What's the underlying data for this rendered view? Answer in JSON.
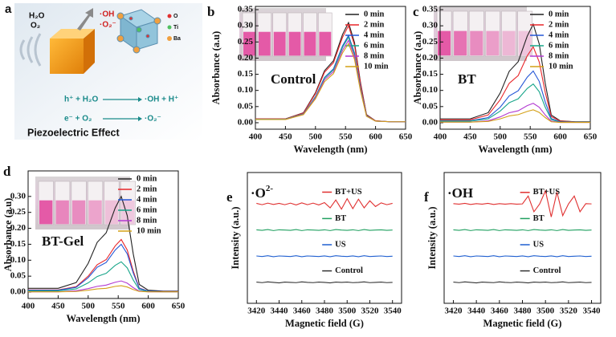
{
  "diagram": {
    "panel_label": "a",
    "h2o": "H₂O",
    "o2": "O₂",
    "oh": "·OH",
    "o2_radical": "·O₂⁻",
    "atoms": [
      "O",
      "Ti",
      "Ba"
    ],
    "reaction_1": {
      "left": "h⁺ + H₂O",
      "right": "·OH + H⁺"
    },
    "reaction_2": {
      "left": "e⁻ + O₂",
      "right": "·O₂⁻"
    },
    "caption": "Piezoelectric Effect"
  },
  "chart_data": [
    {
      "type": "line",
      "panel_label": "b",
      "title": "Control",
      "x_label": "Wavelength (nm)",
      "y_label": "Absorbance (a.u)",
      "xlim": [
        400,
        650
      ],
      "xticks": [
        400,
        450,
        500,
        550,
        600,
        650
      ],
      "ylim": [
        -0.02,
        0.36
      ],
      "yticks": [
        {
          "value": 0,
          "label": "0.00"
        },
        {
          "value": 0.05,
          "label": "0.05"
        },
        {
          "value": 0.1,
          "label": "0.10"
        },
        {
          "value": 0.15,
          "label": "0.15"
        },
        {
          "value": 0.2,
          "label": "0.20"
        },
        {
          "value": 0.25,
          "label": "0.25"
        },
        {
          "value": 0.3,
          "label": "0.30"
        },
        {
          "value": 0.35,
          "label": "0.35"
        }
      ],
      "legend": "upper right",
      "x": [
        400,
        450,
        480,
        500,
        515,
        530,
        545,
        555,
        565,
        575,
        585,
        600,
        625,
        650
      ],
      "series": [
        {
          "name": "0 min",
          "color": "#222222",
          "values": [
            0.012,
            0.012,
            0.031,
            0.093,
            0.161,
            0.192,
            0.273,
            0.31,
            0.248,
            0.124,
            0.025,
            0.006,
            0.003,
            0.003
          ]
        },
        {
          "name": "2 min",
          "color": "#e8262a",
          "values": [
            0.012,
            0.012,
            0.03,
            0.09,
            0.156,
            0.186,
            0.264,
            0.3,
            0.24,
            0.12,
            0.024,
            0.006,
            0.003,
            0.003
          ]
        },
        {
          "name": "4 min",
          "color": "#2356d6",
          "values": [
            0.011,
            0.011,
            0.027,
            0.081,
            0.14,
            0.167,
            0.238,
            0.27,
            0.216,
            0.108,
            0.022,
            0.005,
            0.003,
            0.003
          ]
        },
        {
          "name": "6 min",
          "color": "#17a589",
          "values": [
            0.011,
            0.011,
            0.027,
            0.08,
            0.138,
            0.164,
            0.233,
            0.265,
            0.212,
            0.106,
            0.021,
            0.005,
            0.003,
            0.003
          ]
        },
        {
          "name": "8 min",
          "color": "#b23ad1",
          "values": [
            0.01,
            0.01,
            0.026,
            0.077,
            0.133,
            0.158,
            0.224,
            0.255,
            0.204,
            0.102,
            0.02,
            0.005,
            0.003,
            0.003
          ]
        },
        {
          "name": "10 min",
          "color": "#d4a017",
          "values": [
            0.01,
            0.01,
            0.025,
            0.074,
            0.127,
            0.152,
            0.216,
            0.245,
            0.196,
            0.098,
            0.02,
            0.005,
            0.003,
            0.003
          ]
        }
      ]
    },
    {
      "type": "line",
      "panel_label": "c",
      "title": "BT",
      "x_label": "Wavelength (nm)",
      "y_label": "Absorbance (a.u)",
      "xlim": [
        400,
        650
      ],
      "xticks": [
        400,
        450,
        500,
        550,
        600,
        650
      ],
      "ylim": [
        -0.02,
        0.36
      ],
      "yticks": [
        {
          "value": 0,
          "label": "0.00"
        },
        {
          "value": 0.05,
          "label": "0.05"
        },
        {
          "value": 0.1,
          "label": "0.10"
        },
        {
          "value": 0.15,
          "label": "0.15"
        },
        {
          "value": 0.2,
          "label": "0.20"
        },
        {
          "value": 0.25,
          "label": "0.25"
        },
        {
          "value": 0.3,
          "label": "0.30"
        },
        {
          "value": 0.35,
          "label": "0.35"
        }
      ],
      "legend": "upper right",
      "x": [
        400,
        450,
        480,
        500,
        515,
        530,
        545,
        555,
        565,
        575,
        585,
        600,
        625,
        650
      ],
      "series": [
        {
          "name": "0 min",
          "color": "#222222",
          "values": [
            0.012,
            0.012,
            0.031,
            0.092,
            0.159,
            0.189,
            0.268,
            0.305,
            0.244,
            0.122,
            0.024,
            0.006,
            0.003,
            0.003
          ]
        },
        {
          "name": "2 min",
          "color": "#e8262a",
          "values": [
            0.009,
            0.009,
            0.024,
            0.071,
            0.122,
            0.146,
            0.207,
            0.235,
            0.188,
            0.094,
            0.019,
            0.005,
            0.003,
            0.003
          ]
        },
        {
          "name": "4 min",
          "color": "#2356d6",
          "values": [
            0.006,
            0.006,
            0.016,
            0.048,
            0.083,
            0.099,
            0.141,
            0.16,
            0.128,
            0.064,
            0.013,
            0.003,
            0.002,
            0.002
          ]
        },
        {
          "name": "6 min",
          "color": "#17a589",
          "values": [
            0.005,
            0.005,
            0.012,
            0.036,
            0.062,
            0.074,
            0.106,
            0.12,
            0.096,
            0.048,
            0.01,
            0.002,
            0.002,
            0.002
          ]
        },
        {
          "name": "8 min",
          "color": "#b23ad1",
          "values": [
            0.002,
            0.002,
            0.006,
            0.018,
            0.031,
            0.037,
            0.053,
            0.06,
            0.048,
            0.024,
            0.005,
            0.001,
            0.001,
            0.001
          ]
        },
        {
          "name": "10 min",
          "color": "#d4a017",
          "values": [
            0.002,
            0.002,
            0.004,
            0.012,
            0.021,
            0.025,
            0.035,
            0.04,
            0.032,
            0.016,
            0.003,
            0.001,
            0.001,
            0.001
          ]
        }
      ]
    },
    {
      "type": "line",
      "panel_label": "d",
      "title": "BT-Gel",
      "x_label": "Wavelength (nm)",
      "y_label": "Absorbance (a.u)",
      "xlim": [
        400,
        650
      ],
      "xticks": [
        400,
        450,
        500,
        550,
        600,
        650
      ],
      "ylim": [
        -0.02,
        0.38
      ],
      "yticks": [
        {
          "value": 0,
          "label": "0.00"
        },
        {
          "value": 0.05,
          "label": "0.05"
        },
        {
          "value": 0.1,
          "label": "0.10"
        },
        {
          "value": 0.15,
          "label": "0.15"
        },
        {
          "value": 0.2,
          "label": "0.20"
        },
        {
          "value": 0.25,
          "label": "0.25"
        },
        {
          "value": 0.3,
          "label": "0.30"
        }
      ],
      "legend": "upper right",
      "x": [
        400,
        450,
        480,
        500,
        515,
        530,
        545,
        555,
        565,
        575,
        585,
        600,
        625,
        650
      ],
      "series": [
        {
          "name": "0 min",
          "color": "#222222",
          "values": [
            0.012,
            0.012,
            0.03,
            0.09,
            0.156,
            0.186,
            0.264,
            0.3,
            0.24,
            0.12,
            0.024,
            0.006,
            0.003,
            0.003
          ]
        },
        {
          "name": "2 min",
          "color": "#e8262a",
          "values": [
            0.007,
            0.007,
            0.017,
            0.05,
            0.086,
            0.102,
            0.145,
            0.165,
            0.132,
            0.066,
            0.013,
            0.003,
            0.002,
            0.002
          ]
        },
        {
          "name": "4 min",
          "color": "#2356d6",
          "values": [
            0.006,
            0.006,
            0.015,
            0.045,
            0.078,
            0.093,
            0.132,
            0.15,
            0.12,
            0.06,
            0.012,
            0.003,
            0.002,
            0.002
          ]
        },
        {
          "name": "6 min",
          "color": "#17a589",
          "values": [
            0.004,
            0.004,
            0.01,
            0.029,
            0.049,
            0.059,
            0.084,
            0.095,
            0.076,
            0.038,
            0.008,
            0.002,
            0.001,
            0.001
          ]
        },
        {
          "name": "8 min",
          "color": "#b23ad1",
          "values": [
            0.001,
            0.001,
            0.004,
            0.011,
            0.018,
            0.022,
            0.031,
            0.035,
            0.028,
            0.014,
            0.003,
            0.001,
            0.001,
            0.001
          ]
        },
        {
          "name": "10 min",
          "color": "#d4a017",
          "values": [
            0.001,
            0.001,
            0.002,
            0.006,
            0.01,
            0.012,
            0.018,
            0.02,
            0.016,
            0.008,
            0.002,
            0.001,
            0.001,
            0.001
          ]
        }
      ]
    },
    {
      "type": "line",
      "panel_label": "e",
      "title": "·O",
      "title_superscript": "2-",
      "x_label": "Magnetic field (G)",
      "y_label": "Intensity (a.u.)",
      "xlim": [
        3412,
        3548
      ],
      "xticks": [
        3420,
        3440,
        3460,
        3480,
        3500,
        3520,
        3540
      ],
      "ylim": [
        -0.8,
        4.2
      ],
      "legend": "inline",
      "x": [
        3420,
        3425,
        3430,
        3435,
        3440,
        3445,
        3450,
        3455,
        3460,
        3465,
        3470,
        3475,
        3480,
        3485,
        3490,
        3495,
        3500,
        3505,
        3510,
        3515,
        3520,
        3525,
        3530,
        3535,
        3540
      ],
      "series": [
        {
          "name": "BT+US",
          "color": "#e03030",
          "values": [
            3.02,
            2.97,
            3.03,
            2.98,
            3.02,
            2.97,
            3.03,
            2.96,
            3.04,
            2.97,
            3.03,
            2.96,
            3.05,
            2.85,
            3.15,
            2.8,
            3.2,
            2.82,
            3.18,
            2.85,
            3.12,
            2.9,
            3.04,
            2.97,
            3.02
          ]
        },
        {
          "name": "BT",
          "color": "#20a060",
          "values": [
            2.01,
            1.99,
            2.02,
            1.98,
            2.01,
            2,
            1.99,
            2.02,
            1.98,
            2.01,
            2,
            1.99,
            2.01,
            1.98,
            2.02,
            2,
            1.99,
            2.01,
            1.98,
            2.02,
            1.99,
            2,
            2.01,
            1.99,
            2
          ]
        },
        {
          "name": "US",
          "color": "#1f5fd0",
          "values": [
            1.01,
            0.99,
            1.02,
            0.98,
            1.01,
            1,
            0.99,
            1.02,
            0.98,
            1.01,
            1,
            0.99,
            1.01,
            0.98,
            1.02,
            1,
            0.99,
            1.01,
            0.98,
            1.02,
            0.99,
            1,
            1.01,
            0.99,
            1
          ]
        },
        {
          "name": "Control",
          "color": "#333333",
          "values": [
            0.01,
            -0.01,
            0.02,
            0,
            -0.02,
            0.01,
            0,
            -0.01,
            0.02,
            0,
            -0.01,
            0.01,
            0,
            -0.02,
            0.01,
            0,
            0.01,
            -0.01,
            0,
            0.02,
            -0.01,
            0,
            0.01,
            -0.01,
            0
          ]
        }
      ]
    },
    {
      "type": "line",
      "panel_label": "f",
      "title": "·OH",
      "x_label": "Magnetic field (G)",
      "y_label": "Intensity (a.u.)",
      "xlim": [
        3412,
        3548
      ],
      "xticks": [
        3420,
        3440,
        3460,
        3480,
        3500,
        3520,
        3540
      ],
      "ylim": [
        -0.8,
        4.2
      ],
      "legend": "inline",
      "x": [
        3420,
        3425,
        3430,
        3435,
        3440,
        3445,
        3450,
        3455,
        3460,
        3465,
        3470,
        3475,
        3480,
        3485,
        3490,
        3495,
        3500,
        3505,
        3510,
        3515,
        3520,
        3525,
        3530,
        3535,
        3540
      ],
      "series": [
        {
          "name": "BT+US",
          "color": "#e03030",
          "values": [
            3.01,
            2.99,
            3.02,
            2.98,
            3.01,
            2.99,
            3.02,
            2.98,
            3.01,
            2.99,
            3.01,
            2.99,
            3,
            3.3,
            2.7,
            3,
            3.5,
            2.5,
            3.45,
            2.55,
            3,
            3.3,
            2.7,
            3.01,
            3
          ]
        },
        {
          "name": "BT",
          "color": "#20a060",
          "values": [
            2.01,
            1.99,
            2.02,
            1.98,
            2.01,
            2,
            1.99,
            2.02,
            1.98,
            2.01,
            2,
            1.99,
            2.01,
            1.98,
            2.02,
            2,
            1.99,
            2.01,
            1.98,
            2.02,
            1.99,
            2,
            2.01,
            1.99,
            2
          ]
        },
        {
          "name": "US",
          "color": "#1f5fd0",
          "values": [
            1.01,
            0.99,
            1.02,
            0.98,
            1.01,
            1,
            0.99,
            1.02,
            0.98,
            1.01,
            1,
            0.99,
            1.01,
            0.98,
            1.02,
            1,
            0.99,
            1.01,
            0.98,
            1.02,
            0.99,
            1,
            1.01,
            0.99,
            1
          ]
        },
        {
          "name": "Control",
          "color": "#333333",
          "values": [
            0.01,
            -0.01,
            0.02,
            0,
            -0.02,
            0.01,
            0,
            -0.01,
            0.02,
            0,
            -0.01,
            0.01,
            0,
            -0.02,
            0.01,
            0,
            0.01,
            -0.01,
            0,
            0.02,
            -0.01,
            0,
            0.01,
            -0.01,
            0
          ]
        }
      ]
    }
  ]
}
